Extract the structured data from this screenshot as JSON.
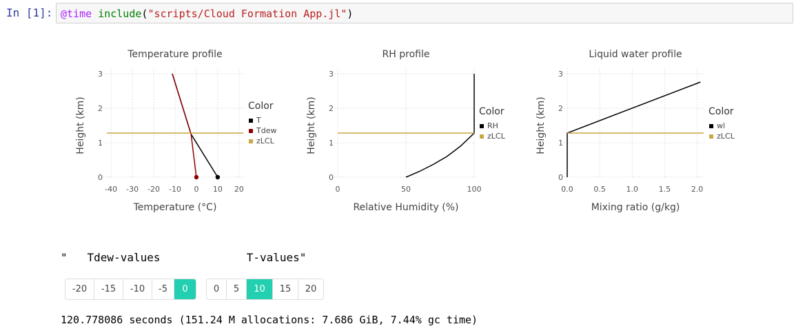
{
  "cell": {
    "prompt": "In [1]:",
    "code_macro": "@time",
    "code_func": "include",
    "code_open": "(",
    "code_string": "\"scripts/Cloud Formation App.jl\"",
    "code_close": ")"
  },
  "plots": [
    {
      "title": "Temperature profile",
      "xlabel": "Temperature (°C)",
      "ylabel": "Height (km)",
      "xticks": [
        "-40",
        "-30",
        "-20",
        "-10",
        "0",
        "10",
        "20"
      ],
      "yticks": [
        "0",
        "1",
        "2",
        "3"
      ],
      "legend_title": "Color",
      "legend": [
        {
          "label": "T",
          "color": "#000000"
        },
        {
          "label": "Tdew",
          "color": "#8b0000"
        },
        {
          "label": "zLCL",
          "color": "#c9a544"
        }
      ]
    },
    {
      "title": "RH profile",
      "xlabel": "Relative Humidity (%)",
      "ylabel": "Height (km)",
      "xticks": [
        "0",
        "50",
        "100"
      ],
      "yticks": [
        "0",
        "1",
        "2",
        "3"
      ],
      "legend_title": "Color",
      "legend": [
        {
          "label": "RH",
          "color": "#000000"
        },
        {
          "label": "zLCL",
          "color": "#c9a544"
        }
      ]
    },
    {
      "title": "Liquid water profile",
      "xlabel": "Mixing ratio (g/kg)",
      "ylabel": "Height (km)",
      "xticks": [
        "0.0",
        "0.5",
        "1.0",
        "1.5",
        "2.0"
      ],
      "yticks": [
        "0",
        "1",
        "2",
        "3"
      ],
      "legend_title": "Color",
      "legend": [
        {
          "label": "wl",
          "color": "#000000"
        },
        {
          "label": "zLCL",
          "color": "#c9a544"
        }
      ]
    }
  ],
  "chart_data": [
    {
      "type": "line",
      "title": "Temperature profile",
      "xlabel": "Temperature (°C)",
      "ylabel": "Height (km)",
      "xlim": [
        -42,
        22
      ],
      "ylim": [
        0,
        3
      ],
      "grid": true,
      "legend": "right",
      "series": [
        {
          "name": "T",
          "x": [
            10,
            -2.5,
            -11.3
          ],
          "y": [
            0,
            1.25,
            3
          ]
        },
        {
          "name": "Tdew",
          "x": [
            0,
            -2.5,
            -11.3
          ],
          "y": [
            0,
            1.25,
            3
          ]
        },
        {
          "name": "zLCL",
          "x": [
            -42,
            22
          ],
          "y": [
            1.28,
            1.28
          ]
        }
      ],
      "points": [
        {
          "series": "T",
          "x": 10,
          "y": 0
        },
        {
          "series": "Tdew",
          "x": 0,
          "y": 0
        }
      ]
    },
    {
      "type": "line",
      "title": "RH profile",
      "xlabel": "Relative Humidity (%)",
      "ylabel": "Height (km)",
      "xlim": [
        0,
        100
      ],
      "ylim": [
        0,
        3
      ],
      "grid": true,
      "legend": "right",
      "series": [
        {
          "name": "RH",
          "x": [
            50,
            60,
            70,
            80,
            90,
            100,
            100
          ],
          "y": [
            0,
            0.17,
            0.37,
            0.6,
            0.9,
            1.28,
            3
          ]
        },
        {
          "name": "zLCL",
          "x": [
            0,
            100
          ],
          "y": [
            1.28,
            1.28
          ]
        }
      ]
    },
    {
      "type": "line",
      "title": "Liquid water profile",
      "xlabel": "Mixing ratio (g/kg)",
      "ylabel": "Height (km)",
      "xlim": [
        0,
        2.1
      ],
      "ylim": [
        0,
        3
      ],
      "grid": true,
      "legend": "right",
      "series": [
        {
          "name": "wl",
          "x": [
            0,
            0,
            2.05
          ],
          "y": [
            0,
            1.28,
            2.76
          ]
        },
        {
          "name": "zLCL",
          "x": [
            0,
            2.1
          ],
          "y": [
            1.28,
            1.28
          ]
        }
      ]
    }
  ],
  "controls": {
    "labels_line": "\"   Tdew-values             T-values\"",
    "tdew_options": [
      "-20",
      "-15",
      "-10",
      "-5",
      "0"
    ],
    "tdew_selected": "0",
    "t_options": [
      "0",
      "5",
      "10",
      "15",
      "20"
    ],
    "t_selected": "10",
    "accent_color": "#22cfb0"
  },
  "output": {
    "time_text": "120.778086 seconds (151.24 M allocations: 7.686 GiB, 7.44% gc time)"
  }
}
